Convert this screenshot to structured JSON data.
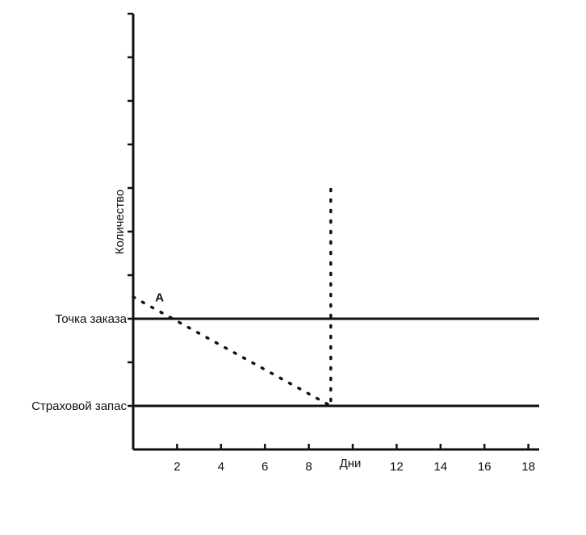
{
  "chart_data": {
    "type": "line",
    "xlabel": "Дни",
    "ylabel": "Количество",
    "x_ticks": [
      0,
      2,
      4,
      6,
      8,
      10,
      12,
      14,
      16,
      18
    ],
    "x_tick_labels": [
      "2",
      "4",
      "6",
      "8",
      "12",
      "14",
      "16",
      "18"
    ],
    "xlim": [
      0,
      18.5
    ],
    "ylim": [
      0,
      10
    ],
    "y_ticks": [
      1,
      2,
      3,
      4,
      5,
      6,
      7,
      8,
      9,
      10
    ],
    "reference_lines": [
      {
        "label": "Точка заказа",
        "y": 3
      },
      {
        "label": "Страховой запас",
        "y": 1
      }
    ],
    "series": [
      {
        "style": "dotted",
        "x": [
          0,
          9,
          9
        ],
        "y": [
          3.5,
          1,
          6
        ]
      }
    ],
    "annotations": [
      {
        "text": "A",
        "x": 1.2,
        "y": 3.4
      }
    ],
    "grid": false,
    "colors": {
      "axis": "#111111",
      "line": "#111111"
    }
  }
}
